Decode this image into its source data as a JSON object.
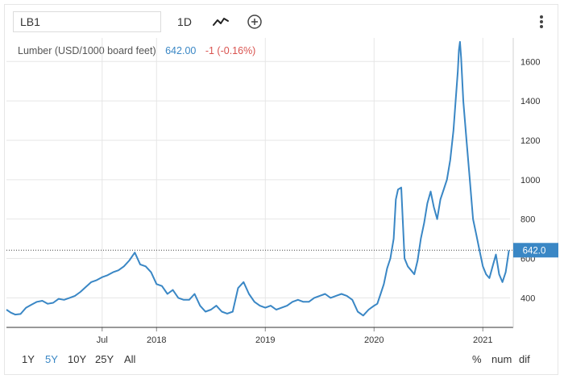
{
  "toolbar": {
    "symbol": "LB1",
    "interval": "1D",
    "chart_type_icon": "line-chart-icon",
    "compare_icon": "plus-circle-icon",
    "menu_icon": "vertical-ellipsis-icon"
  },
  "legend": {
    "name": "Lumber (USD/1000 board feet)",
    "price": "642.00",
    "change": "-1 (-0.16%)"
  },
  "ranges": [
    "1Y",
    "5Y",
    "10Y",
    "25Y",
    "All"
  ],
  "active_range": "5Y",
  "scales": [
    "%",
    "num",
    "dif"
  ],
  "colors": {
    "series": "#3a87c5",
    "price_tag": "#3a87c5",
    "active_range": "#3a87c5",
    "change_negative": "#d9534f",
    "grid": "#e6e6e6"
  },
  "chart_data": {
    "type": "line",
    "title": "Lumber (USD/1000 board feet)",
    "xlabel": "",
    "ylabel": "",
    "x_tick_labels": [
      "Jul",
      "2018",
      "2019",
      "2020",
      "2021"
    ],
    "x_tick_values": [
      2017.5,
      2018.0,
      2019.0,
      2020.0,
      2021.0
    ],
    "y_ticks": [
      400,
      600,
      800,
      1000,
      1200,
      1400,
      1600
    ],
    "xlim": [
      2016.62,
      2021.25
    ],
    "ylim": [
      250,
      1720
    ],
    "current_value": 642.0,
    "current_value_label": "642.0",
    "grid": true,
    "series": [
      {
        "x": [
          2016.62,
          2016.66,
          2016.7,
          2016.75,
          2016.8,
          2016.85,
          2016.9,
          2016.95,
          2017.0,
          2017.05,
          2017.1,
          2017.15,
          2017.2,
          2017.25,
          2017.3,
          2017.35,
          2017.4,
          2017.45,
          2017.5,
          2017.55,
          2017.6,
          2017.65,
          2017.7,
          2017.75,
          2017.8,
          2017.85,
          2017.9,
          2017.95,
          2018.0,
          2018.05,
          2018.1,
          2018.15,
          2018.2,
          2018.25,
          2018.3,
          2018.35,
          2018.4,
          2018.45,
          2018.5,
          2018.55,
          2018.6,
          2018.65,
          2018.7,
          2018.75,
          2018.8,
          2018.85,
          2018.9,
          2018.95,
          2019.0,
          2019.05,
          2019.1,
          2019.15,
          2019.2,
          2019.25,
          2019.3,
          2019.35,
          2019.4,
          2019.45,
          2019.5,
          2019.55,
          2019.6,
          2019.65,
          2019.7,
          2019.75,
          2019.8,
          2019.85,
          2019.9,
          2019.95,
          2020.0,
          2020.03,
          2020.06,
          2020.09,
          2020.12,
          2020.15,
          2020.18,
          2020.2,
          2020.22,
          2020.25,
          2020.28,
          2020.31,
          2020.34,
          2020.37,
          2020.4,
          2020.43,
          2020.46,
          2020.49,
          2020.52,
          2020.55,
          2020.58,
          2020.61,
          2020.64,
          2020.67,
          2020.7,
          2020.73,
          2020.75,
          2020.77,
          2020.78,
          2020.79,
          2020.8,
          2020.82,
          2020.85,
          2020.88,
          2020.91,
          2020.94,
          2020.97,
          2021.0,
          2021.03,
          2021.06,
          2021.09,
          2021.12,
          2021.15,
          2021.18,
          2021.21,
          2021.24
        ],
        "values": [
          340,
          325,
          315,
          318,
          350,
          365,
          380,
          385,
          370,
          375,
          395,
          390,
          400,
          410,
          430,
          455,
          480,
          490,
          505,
          515,
          530,
          540,
          560,
          590,
          630,
          570,
          560,
          530,
          470,
          460,
          420,
          440,
          400,
          390,
          390,
          420,
          360,
          330,
          340,
          360,
          330,
          320,
          330,
          450,
          480,
          420,
          380,
          360,
          350,
          360,
          340,
          350,
          360,
          380,
          390,
          380,
          380,
          400,
          410,
          420,
          400,
          410,
          420,
          410,
          390,
          330,
          310,
          340,
          360,
          370,
          420,
          470,
          550,
          600,
          700,
          900,
          950,
          960,
          600,
          560,
          540,
          520,
          590,
          700,
          780,
          880,
          940,
          860,
          800,
          900,
          950,
          1000,
          1100,
          1250,
          1400,
          1550,
          1660,
          1700,
          1620,
          1400,
          1200,
          1000,
          800,
          720,
          640,
          560,
          520,
          500,
          560,
          620,
          520,
          480,
          530,
          642
        ]
      }
    ]
  }
}
